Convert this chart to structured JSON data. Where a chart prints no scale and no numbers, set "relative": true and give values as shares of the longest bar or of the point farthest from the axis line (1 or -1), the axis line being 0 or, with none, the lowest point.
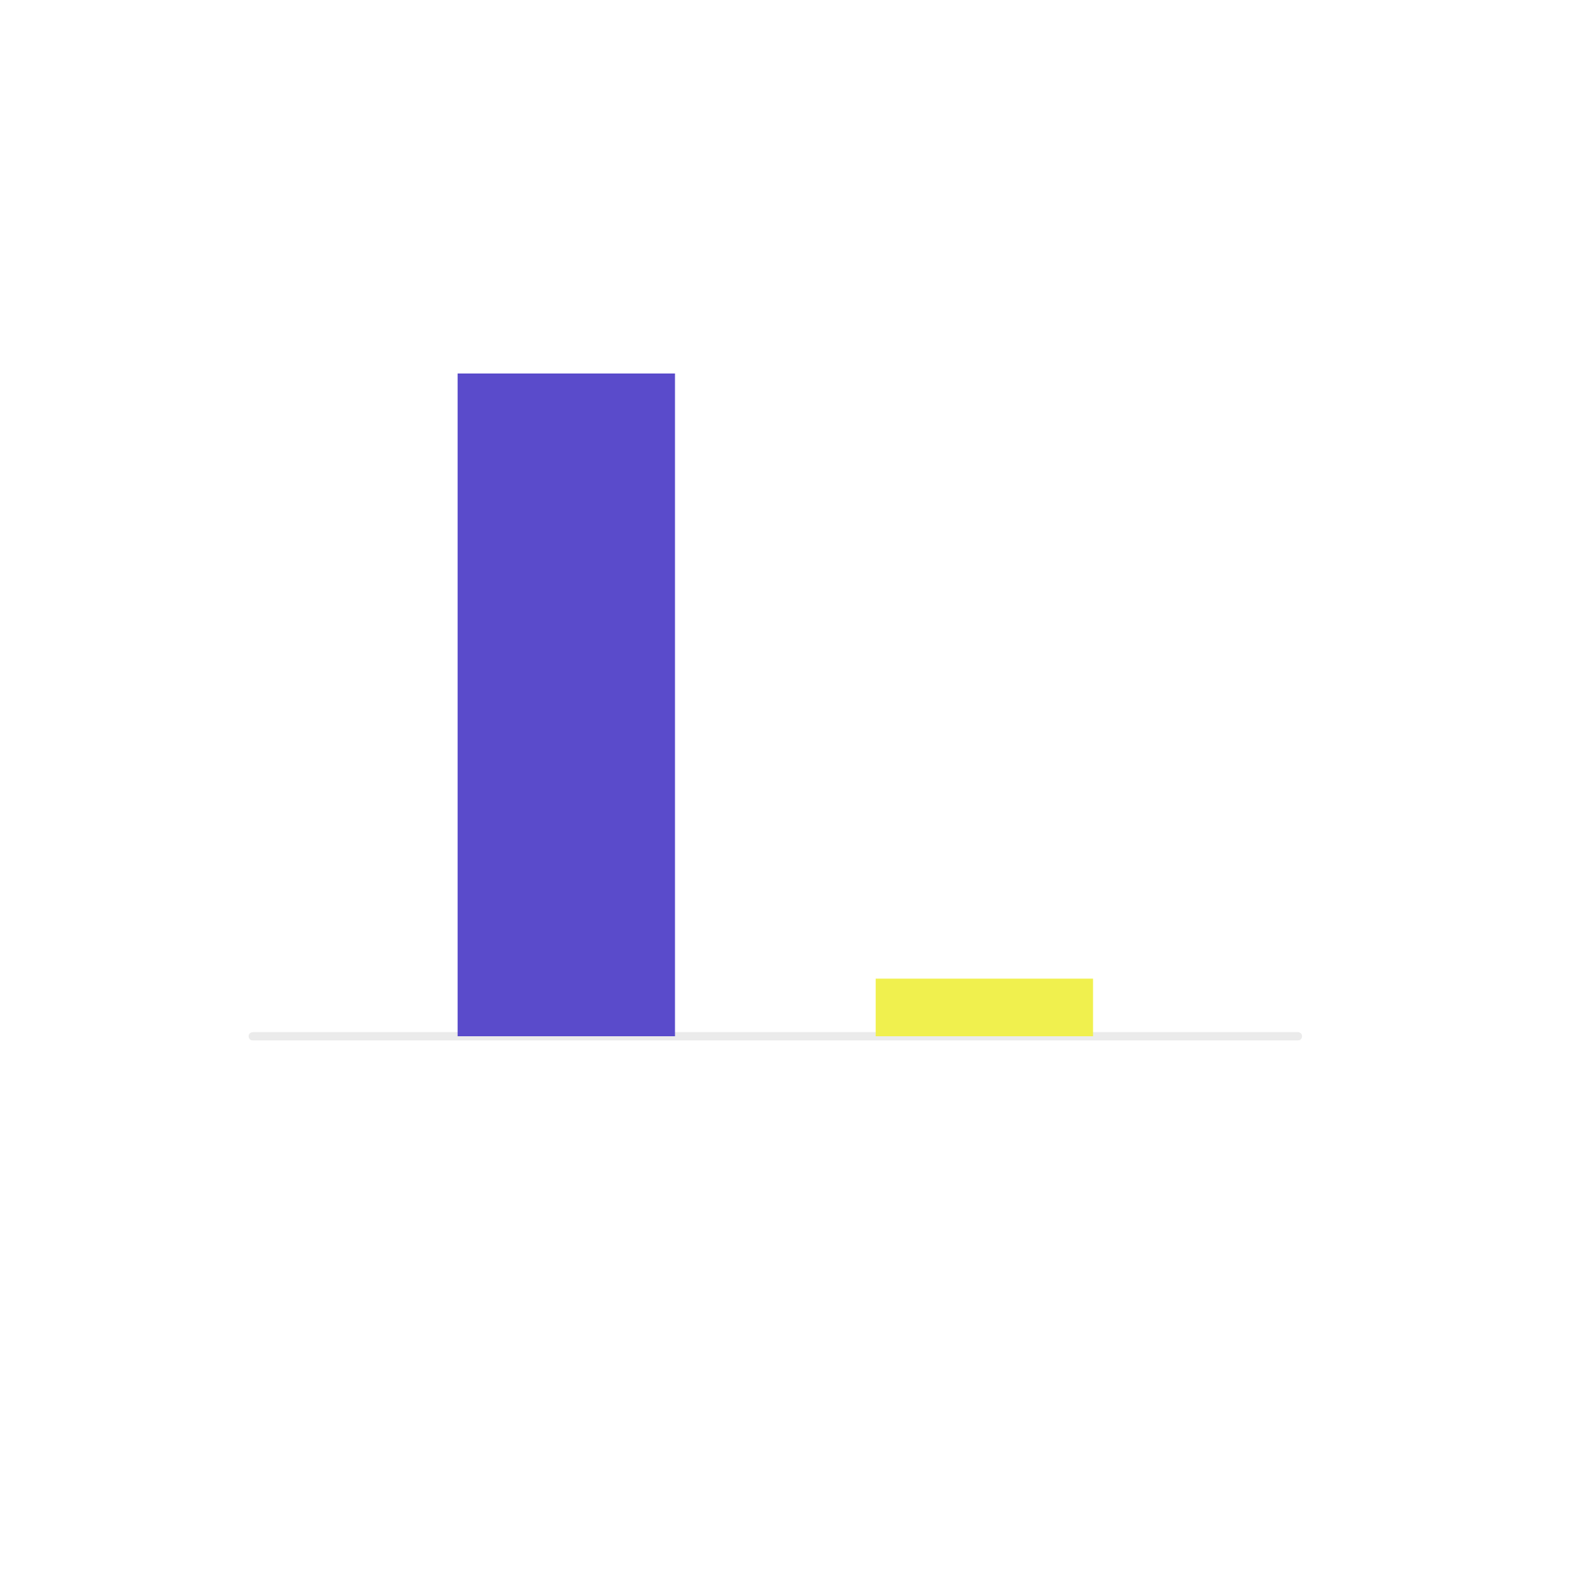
{
  "chart_data": {
    "type": "bar",
    "relative": true,
    "categories": [
      null,
      null
    ],
    "values": [
      1,
      0.087
    ],
    "colors": [
      "#5a4bcb",
      "#f0f04e"
    ]
  }
}
